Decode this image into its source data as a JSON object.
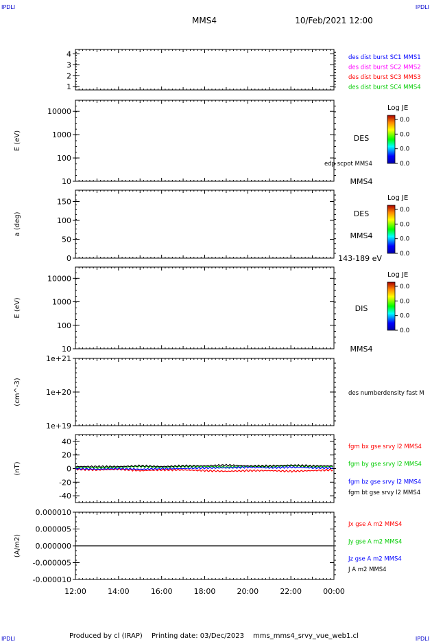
{
  "header": {
    "logo_text": "IPDLI",
    "spacecraft": "MMS4",
    "datetime": "10/Feb/2021 12:00"
  },
  "footer": {
    "produced": "Produced by cl (IRAP)",
    "printing": "Printing date: 03/Dec/2023",
    "filename": "mms_mms4_srvy_vue_web1.cl"
  },
  "colors": {
    "blue": "#0000ff",
    "magenta": "#ff00ff",
    "red": "#ff0000",
    "green": "#00cc00",
    "black": "#000000"
  },
  "time_axis": {
    "ticks": [
      "12:00",
      "14:00",
      "16:00",
      "18:00",
      "20:00",
      "22:00",
      "00:00"
    ],
    "range_hours": [
      12,
      24
    ]
  },
  "chart_data": [
    {
      "type": "line",
      "id": "panel1",
      "ylabel": "",
      "yticks": [
        "4",
        "3",
        "2",
        "1"
      ],
      "ylim": [
        0.7,
        4.4
      ],
      "series": [
        {
          "name": "des dist burst SC1 MMS1",
          "color": "#0000ff"
        },
        {
          "name": "des dist burst SC2 MMS2",
          "color": "#ff00ff"
        },
        {
          "name": "des dist burst SC3 MMS3",
          "color": "#ff0000"
        },
        {
          "name": "des dist burst SC4 MMS4",
          "color": "#00cc00"
        }
      ]
    },
    {
      "type": "heatmap",
      "id": "panel2",
      "ylabel": "E (eV)",
      "yscale": "log",
      "yticks": [
        "10000",
        "1000",
        "100",
        "10"
      ],
      "ylim": [
        10,
        30000
      ],
      "labels": [
        "DES",
        "edp scpot MMS4",
        "MMS4"
      ],
      "colorbar": {
        "title": "Log JE",
        "ticks": [
          "0.0",
          "0.0",
          "0.0",
          "0.0"
        ]
      }
    },
    {
      "type": "heatmap",
      "id": "panel3",
      "ylabel": "a (deg)",
      "yticks": [
        "150",
        "100",
        "50",
        "0"
      ],
      "ylim": [
        0,
        180
      ],
      "labels": [
        "DES",
        "MMS4",
        "143-189 eV"
      ],
      "colorbar": {
        "title": "Log JE",
        "ticks": [
          "0.0",
          "0.0",
          "0.0",
          "0.0"
        ]
      }
    },
    {
      "type": "heatmap",
      "id": "panel4",
      "ylabel": "E (eV)",
      "yscale": "log",
      "yticks": [
        "10000",
        "1000",
        "100",
        "10"
      ],
      "ylim": [
        10,
        30000
      ],
      "labels": [
        "DIS",
        "MMS4"
      ],
      "colorbar": {
        "title": "Log JE",
        "ticks": [
          "0.0",
          "0.0",
          "0.0",
          "0.0"
        ]
      }
    },
    {
      "type": "line",
      "id": "panel5",
      "ylabel": "(cm^-3)",
      "yscale": "log",
      "yticks": [
        "1e+21",
        "1e+20",
        "1e+19"
      ],
      "ylim": [
        1e+19,
        1e+21
      ],
      "series": [
        {
          "name": "des numberdensity fast M",
          "color": "#000000"
        }
      ]
    },
    {
      "type": "line",
      "id": "panel6",
      "ylabel": "(nT)",
      "yticks": [
        "40",
        "20",
        "0",
        "-20",
        "-40"
      ],
      "ylim": [
        -50,
        50
      ],
      "series": [
        {
          "name": "fgm bx gse srvy l2 MMS4",
          "color": "#ff0000",
          "x": [
            12,
            13,
            14,
            15,
            16,
            17,
            18,
            19,
            20,
            21,
            22,
            23,
            24
          ],
          "y": [
            -1,
            -2,
            -1,
            -3,
            -2,
            -2,
            -3,
            -4,
            -3,
            -3,
            -4,
            -3,
            -2
          ]
        },
        {
          "name": "fgm by gse srvy l2 MMS4",
          "color": "#00cc00",
          "x": [
            12,
            13,
            14,
            15,
            16,
            17,
            18,
            19,
            20,
            21,
            22,
            23,
            24
          ],
          "y": [
            2,
            1,
            2,
            3,
            2,
            3,
            3,
            2,
            3,
            3,
            4,
            3,
            3
          ]
        },
        {
          "name": "fgm bz gse srvy l2 MMS4",
          "color": "#0000ff",
          "x": [
            12,
            13,
            14,
            15,
            16,
            17,
            18,
            19,
            20,
            21,
            22,
            23,
            24
          ],
          "y": [
            0,
            -1,
            0,
            -1,
            0,
            0,
            1,
            1,
            2,
            1,
            2,
            1,
            1
          ]
        },
        {
          "name": "fgm bt gse srvy l2 MMS4",
          "color": "#000000",
          "x": [
            12,
            13,
            14,
            15,
            16,
            17,
            18,
            19,
            20,
            21,
            22,
            23,
            24
          ],
          "y": [
            3,
            3,
            3,
            4,
            3,
            4,
            4,
            5,
            4,
            4,
            5,
            4,
            4
          ]
        }
      ]
    },
    {
      "type": "line",
      "id": "panel7",
      "ylabel": "(A/m2)",
      "yticks": [
        "0.000010",
        "0.000005",
        "0.000000",
        "-0.000005",
        "-0.000010"
      ],
      "ylim": [
        -1e-05,
        1e-05
      ],
      "series": [
        {
          "name": "Jx gse A m2 MMS4",
          "color": "#ff0000"
        },
        {
          "name": "Jy gse A m2 MMS4",
          "color": "#00cc00"
        },
        {
          "name": "Jz gse A m2 MMS4",
          "color": "#0000ff"
        },
        {
          "name": "J A m2 MMS4",
          "color": "#000000",
          "x": [
            12,
            13,
            14,
            15,
            16,
            17,
            18,
            19,
            20,
            21,
            22,
            23,
            24
          ],
          "y": [
            0,
            0,
            0,
            0,
            0,
            0,
            0,
            0,
            0,
            0,
            0,
            0,
            0
          ]
        }
      ]
    }
  ]
}
